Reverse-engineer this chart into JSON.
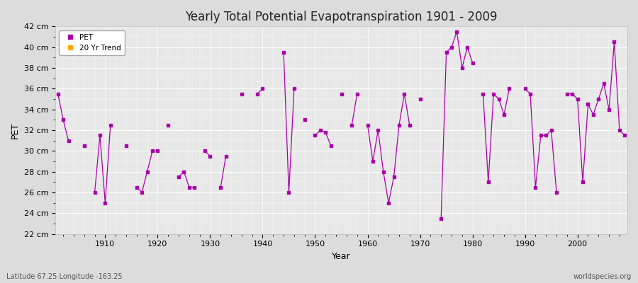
{
  "title": "Yearly Total Potential Evapotranspiration 1901 - 2009",
  "xlabel": "Year",
  "ylabel": "PET",
  "xlim": [
    1901,
    2009
  ],
  "ylim": [
    22,
    42
  ],
  "yticks": [
    22,
    24,
    26,
    28,
    30,
    32,
    34,
    36,
    38,
    40,
    42
  ],
  "ytick_labels": [
    "22 cm",
    "24 cm",
    "26 cm",
    "28 cm",
    "30 cm",
    "32 cm",
    "34 cm",
    "36 cm",
    "38 cm",
    "40 cm",
    "42 cm"
  ],
  "background_color": "#dcdcdc",
  "plot_bg_color": "#e8e8e8",
  "line_color": "#aa00aa",
  "trend_color": "#ffaa00",
  "grid_color": "#ffffff",
  "subtitle_left": "Latitude 67.25 Longitude -163.25",
  "subtitle_right": "worldspecies.org",
  "pet_data": {
    "1901": 35.5,
    "1902": 33.0,
    "1903": 31.0,
    "1906": 30.5,
    "1908": 26.0,
    "1909": 31.5,
    "1910": 25.0,
    "1911": 32.5,
    "1914": 30.5,
    "1916": 26.5,
    "1917": 26.0,
    "1918": 28.0,
    "1919": 30.0,
    "1920": 30.0,
    "1922": 32.5,
    "1924": 27.5,
    "1925": 28.0,
    "1926": 26.5,
    "1927": 26.5,
    "1929": 30.0,
    "1930": 29.5,
    "1932": 26.5,
    "1933": 29.5,
    "1936": 35.5,
    "1939": 35.5,
    "1940": 36.0,
    "1944": 39.5,
    "1945": 26.0,
    "1946": 36.0,
    "1948": 33.0,
    "1950": 31.5,
    "1951": 32.0,
    "1952": 31.8,
    "1953": 30.5,
    "1955": 35.5,
    "1957": 32.5,
    "1958": 35.5,
    "1960": 32.5,
    "1961": 29.0,
    "1962": 32.0,
    "1963": 28.0,
    "1964": 25.0,
    "1965": 27.5,
    "1966": 32.5,
    "1967": 35.5,
    "1968": 32.5,
    "1970": 35.0,
    "1974": 23.5,
    "1975": 39.5,
    "1976": 40.0,
    "1977": 41.5,
    "1978": 38.0,
    "1979": 40.0,
    "1980": 38.5,
    "1982": 35.5,
    "1983": 27.0,
    "1984": 35.5,
    "1985": 35.0,
    "1986": 33.5,
    "1987": 36.0,
    "1990": 36.0,
    "1991": 35.5,
    "1992": 26.5,
    "1993": 31.5,
    "1994": 31.5,
    "1995": 32.0,
    "1996": 26.0,
    "1998": 35.5,
    "1999": 35.5,
    "2000": 35.0,
    "2001": 27.0,
    "2002": 34.5,
    "2003": 33.5,
    "2004": 35.0,
    "2005": 36.5,
    "2006": 34.0,
    "2007": 40.5,
    "2008": 32.0,
    "2009": 31.5
  },
  "legend_pet_color": "#aa00aa",
  "legend_trend_color": "#ffaa00"
}
